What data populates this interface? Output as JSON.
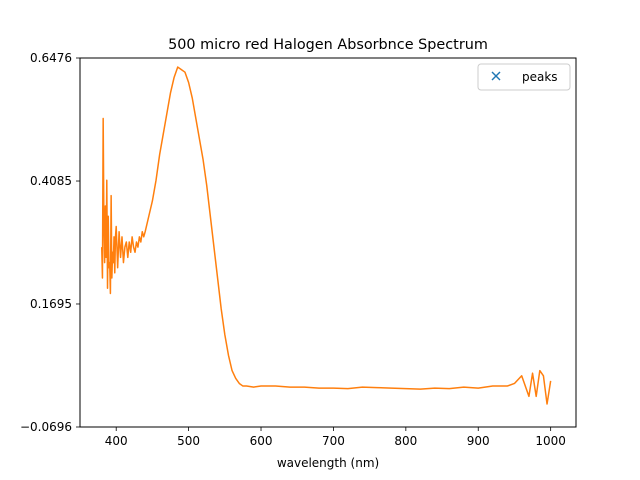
{
  "chart_data": {
    "type": "line",
    "title": "500 micro red Halogen Absorbnce Spectrum",
    "xlabel": "wavelength (nm)",
    "ylabel": "",
    "xlim": [
      350,
      1035
    ],
    "ylim": [
      -0.0696,
      0.6476
    ],
    "x_ticks": [
      400,
      500,
      600,
      700,
      800,
      900,
      1000
    ],
    "y_ticks": [
      -0.0696,
      0.1695,
      0.4085,
      0.6476
    ],
    "y_tick_labels": [
      "−0.0696",
      "0.1695",
      "0.4085",
      "0.6476"
    ],
    "grid": false,
    "legend": {
      "position": "top-right",
      "entries": [
        {
          "label": "peaks",
          "marker": "x",
          "color": "#1f77b4"
        }
      ]
    },
    "series": [
      {
        "color": "#ff7f0e",
        "x": [
          380,
          381,
          382,
          383,
          384,
          385,
          386,
          387,
          388,
          389,
          390,
          391,
          392,
          393,
          394,
          395,
          396,
          397,
          398,
          399,
          400,
          402,
          404,
          406,
          408,
          410,
          412,
          414,
          416,
          418,
          420,
          422,
          424,
          426,
          428,
          430,
          432,
          434,
          436,
          438,
          440,
          445,
          450,
          455,
          460,
          465,
          470,
          475,
          480,
          485,
          490,
          495,
          500,
          505,
          510,
          515,
          520,
          525,
          530,
          535,
          540,
          545,
          550,
          555,
          560,
          565,
          570,
          575,
          580,
          590,
          600,
          620,
          640,
          660,
          680,
          700,
          720,
          740,
          760,
          780,
          800,
          820,
          840,
          860,
          880,
          900,
          920,
          940,
          950,
          960,
          970,
          975,
          980,
          985,
          990,
          995,
          1000
        ],
        "y": [
          0.28,
          0.22,
          0.53,
          0.33,
          0.25,
          0.36,
          0.26,
          0.41,
          0.2,
          0.34,
          0.24,
          0.25,
          0.19,
          0.38,
          0.22,
          0.27,
          0.25,
          0.3,
          0.23,
          0.3,
          0.32,
          0.24,
          0.31,
          0.26,
          0.3,
          0.25,
          0.28,
          0.29,
          0.26,
          0.29,
          0.27,
          0.3,
          0.28,
          0.27,
          0.29,
          0.28,
          0.3,
          0.29,
          0.31,
          0.3,
          0.31,
          0.34,
          0.37,
          0.41,
          0.46,
          0.5,
          0.54,
          0.58,
          0.61,
          0.63,
          0.625,
          0.62,
          0.6,
          0.57,
          0.53,
          0.49,
          0.45,
          0.4,
          0.34,
          0.28,
          0.22,
          0.16,
          0.11,
          0.07,
          0.04,
          0.025,
          0.015,
          0.01,
          0.01,
          0.008,
          0.01,
          0.01,
          0.008,
          0.008,
          0.006,
          0.006,
          0.005,
          0.008,
          0.007,
          0.006,
          0.005,
          0.004,
          0.006,
          0.005,
          0.008,
          0.006,
          0.01,
          0.01,
          0.015,
          0.03,
          -0.01,
          0.035,
          -0.01,
          0.04,
          0.03,
          -0.025,
          0.02
        ]
      }
    ]
  }
}
